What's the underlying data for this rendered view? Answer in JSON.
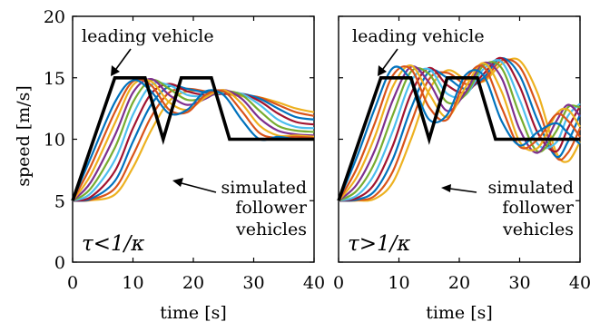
{
  "figure": {
    "ylabel": "speed [m/s]"
  },
  "chart_data": [
    {
      "type": "line",
      "panel_label": "τ<1/κ",
      "xlabel": "time [s]",
      "ylabel": "speed [m/s]",
      "xlim": [
        0,
        40
      ],
      "ylim": [
        0,
        20
      ],
      "xticks": [
        "0",
        "10",
        "20",
        "30",
        "40"
      ],
      "yticks": [
        "0",
        "5",
        "10",
        "15",
        "20"
      ],
      "grid": false,
      "annotations": [
        "leading vehicle",
        "simulated follower vehicles"
      ],
      "leader": {
        "color": "#000000",
        "x": [
          0,
          7,
          12,
          15,
          18,
          23,
          26,
          40
        ],
        "y": [
          5,
          15,
          15,
          10,
          15,
          15,
          10,
          10
        ]
      },
      "followers": [
        {
          "color": "#0072BD",
          "x": [
            0,
            3,
            7,
            10,
            13,
            16,
            19,
            22,
            25,
            28,
            31,
            34,
            37,
            40
          ],
          "y": [
            5,
            8.5,
            13.0,
            14.8,
            13.9,
            12.1,
            12.4,
            13.9,
            13.6,
            11.6,
            10.0,
            10.2,
            10.0,
            10.0
          ]
        },
        {
          "color": "#D95319",
          "x": [
            0,
            3,
            7,
            10,
            13,
            16,
            19,
            22,
            25,
            28,
            31,
            34,
            37,
            40
          ],
          "y": [
            5,
            7.8,
            12.2,
            14.7,
            14.4,
            12.4,
            12.2,
            13.6,
            13.9,
            12.3,
            10.5,
            10.1,
            10.2,
            10.1
          ]
        },
        {
          "color": "#EDB120",
          "x": [
            0,
            3,
            7,
            10,
            13,
            16,
            19,
            22,
            25,
            28,
            31,
            34,
            37,
            40
          ],
          "y": [
            5,
            7.1,
            11.3,
            14.4,
            14.7,
            13.0,
            12.4,
            13.4,
            14.0,
            12.9,
            11.1,
            10.3,
            10.3,
            10.2
          ]
        },
        {
          "color": "#7E2F8E",
          "x": [
            0,
            3,
            7,
            10,
            13,
            16,
            19,
            22,
            25,
            28,
            31,
            34,
            37,
            40
          ],
          "y": [
            5,
            6.5,
            10.3,
            13.8,
            14.9,
            13.6,
            12.8,
            13.3,
            14.0,
            13.3,
            11.7,
            10.7,
            10.4,
            10.3
          ]
        },
        {
          "color": "#77AC30",
          "x": [
            0,
            3,
            7,
            10,
            13,
            16,
            19,
            22,
            25,
            28,
            31,
            34,
            37,
            40
          ],
          "y": [
            5,
            6.0,
            9.3,
            13.0,
            14.8,
            14.1,
            13.2,
            13.4,
            13.9,
            13.6,
            12.3,
            11.1,
            10.7,
            10.6
          ]
        },
        {
          "color": "#4DBEEE",
          "x": [
            0,
            3,
            7,
            10,
            13,
            16,
            19,
            22,
            25,
            28,
            31,
            34,
            37,
            40
          ],
          "y": [
            5,
            5.6,
            8.3,
            12.0,
            14.4,
            14.4,
            13.6,
            13.5,
            13.8,
            13.7,
            12.8,
            11.6,
            11.0,
            10.9
          ]
        },
        {
          "color": "#A2142F",
          "x": [
            0,
            3,
            7,
            10,
            13,
            16,
            19,
            22,
            25,
            28,
            31,
            34,
            37,
            40
          ],
          "y": [
            5,
            5.3,
            7.4,
            10.9,
            13.7,
            14.5,
            13.9,
            13.6,
            13.7,
            13.7,
            13.1,
            12.1,
            11.4,
            11.2
          ]
        },
        {
          "color": "#0072BD",
          "x": [
            0,
            3,
            7,
            10,
            13,
            16,
            19,
            22,
            25,
            28,
            31,
            34,
            37,
            40
          ],
          "y": [
            5,
            5.15,
            6.6,
            9.8,
            12.8,
            14.3,
            14.1,
            13.8,
            13.7,
            13.7,
            13.3,
            12.5,
            11.8,
            11.6
          ]
        },
        {
          "color": "#D95319",
          "x": [
            0,
            3,
            7,
            10,
            13,
            16,
            19,
            22,
            25,
            28,
            31,
            34,
            37,
            40
          ],
          "y": [
            5,
            5.08,
            6.0,
            8.7,
            11.8,
            13.8,
            14.1,
            13.9,
            13.7,
            13.6,
            13.4,
            12.8,
            12.2,
            11.9
          ]
        },
        {
          "color": "#EDB120",
          "x": [
            0,
            3,
            7,
            10,
            13,
            16,
            19,
            22,
            25,
            28,
            31,
            34,
            37,
            40
          ],
          "y": [
            5,
            5.03,
            5.5,
            7.7,
            10.7,
            13.1,
            13.9,
            13.9,
            13.7,
            13.5,
            13.4,
            13.0,
            12.5,
            12.2
          ]
        }
      ]
    },
    {
      "type": "line",
      "panel_label": "τ>1/κ",
      "xlabel": "time [s]",
      "xlim": [
        0,
        40
      ],
      "ylim": [
        0,
        20
      ],
      "xticks": [
        "0",
        "10",
        "20",
        "30",
        "40"
      ],
      "grid": false,
      "annotations": [
        "leading vehicle",
        "simulated follower vehicles"
      ],
      "leader": {
        "color": "#000000",
        "x": [
          0,
          7,
          12,
          15,
          18,
          23,
          26,
          40
        ],
        "y": [
          5,
          15,
          15,
          10,
          15,
          15,
          10,
          10
        ]
      },
      "followers": [
        {
          "color": "#0072BD",
          "x": [
            0,
            3,
            6,
            9,
            12,
            15,
            18,
            21,
            24,
            27,
            30,
            33,
            36,
            38,
            40
          ],
          "y": [
            5,
            8.5,
            12.5,
            15.8,
            14.8,
            11.6,
            12.0,
            15.2,
            15.2,
            11.5,
            9.5,
            10.6,
            11.3,
            10.5,
            9.6
          ]
        },
        {
          "color": "#D95319",
          "x": [
            0,
            3,
            6,
            9,
            12,
            15,
            18,
            21,
            24,
            27,
            30,
            33,
            36,
            38,
            40
          ],
          "y": [
            5,
            7.6,
            11.3,
            15.2,
            15.7,
            12.6,
            11.6,
            14.8,
            15.9,
            12.6,
            9.4,
            10.0,
            12.0,
            11.5,
            10.2
          ]
        },
        {
          "color": "#EDB120",
          "x": [
            0,
            3,
            6,
            9,
            12,
            15,
            18,
            21,
            24,
            27,
            30,
            33,
            36,
            38,
            40
          ],
          "y": [
            5,
            6.9,
            10.2,
            14.3,
            16.0,
            13.7,
            11.8,
            14.2,
            16.2,
            13.9,
            9.8,
            9.3,
            12.0,
            12.4,
            11.0
          ]
        },
        {
          "color": "#7E2F8E",
          "x": [
            0,
            3,
            6,
            9,
            12,
            15,
            18,
            21,
            24,
            27,
            30,
            33,
            36,
            38,
            40
          ],
          "y": [
            5,
            6.3,
            9.1,
            13.2,
            15.9,
            14.6,
            12.3,
            13.8,
            16.2,
            15.0,
            10.8,
            8.9,
            11.4,
            12.8,
            11.9
          ]
        },
        {
          "color": "#77AC30",
          "x": [
            0,
            3,
            6,
            9,
            12,
            15,
            18,
            21,
            24,
            27,
            30,
            33,
            36,
            38,
            40
          ],
          "y": [
            5,
            5.8,
            8.1,
            12.0,
            15.5,
            15.3,
            13.0,
            13.6,
            16.0,
            15.8,
            12.0,
            9.0,
            10.6,
            12.6,
            12.6
          ]
        },
        {
          "color": "#4DBEEE",
          "x": [
            0,
            3,
            6,
            9,
            12,
            15,
            18,
            21,
            24,
            27,
            30,
            33,
            36,
            38,
            40
          ],
          "y": [
            5,
            5.4,
            7.2,
            10.7,
            14.7,
            15.7,
            13.7,
            13.6,
            15.7,
            16.3,
            13.2,
            9.6,
            9.7,
            11.9,
            12.9
          ]
        },
        {
          "color": "#A2142F",
          "x": [
            0,
            3,
            6,
            9,
            12,
            15,
            18,
            21,
            24,
            27,
            30,
            33,
            36,
            38,
            40
          ],
          "y": [
            5,
            5.2,
            6.4,
            9.5,
            13.7,
            15.8,
            14.4,
            13.8,
            15.3,
            16.6,
            14.3,
            10.5,
            9.0,
            10.9,
            12.7
          ]
        },
        {
          "color": "#0072BD",
          "x": [
            0,
            3,
            6,
            9,
            12,
            15,
            18,
            21,
            24,
            27,
            30,
            33,
            36,
            38,
            40
          ],
          "y": [
            5,
            5.08,
            5.8,
            8.4,
            12.5,
            15.5,
            15.0,
            14.1,
            15.0,
            16.6,
            15.2,
            11.5,
            8.6,
            9.8,
            12.0
          ]
        },
        {
          "color": "#D95319",
          "x": [
            0,
            3,
            6,
            9,
            12,
            15,
            18,
            21,
            24,
            27,
            30,
            33,
            36,
            38,
            40
          ],
          "y": [
            5,
            5.03,
            5.4,
            7.4,
            11.3,
            14.9,
            15.4,
            14.5,
            14.8,
            16.4,
            15.9,
            12.6,
            8.6,
            8.9,
            10.9
          ]
        },
        {
          "color": "#EDB120",
          "x": [
            0,
            3,
            6,
            9,
            12,
            15,
            18,
            21,
            24,
            27,
            30,
            33,
            36,
            38,
            40
          ],
          "y": [
            5,
            5.01,
            5.15,
            6.5,
            10.0,
            14.0,
            15.6,
            14.9,
            14.7,
            16.1,
            16.4,
            13.7,
            9.0,
            8.2,
            9.8
          ]
        }
      ]
    }
  ]
}
